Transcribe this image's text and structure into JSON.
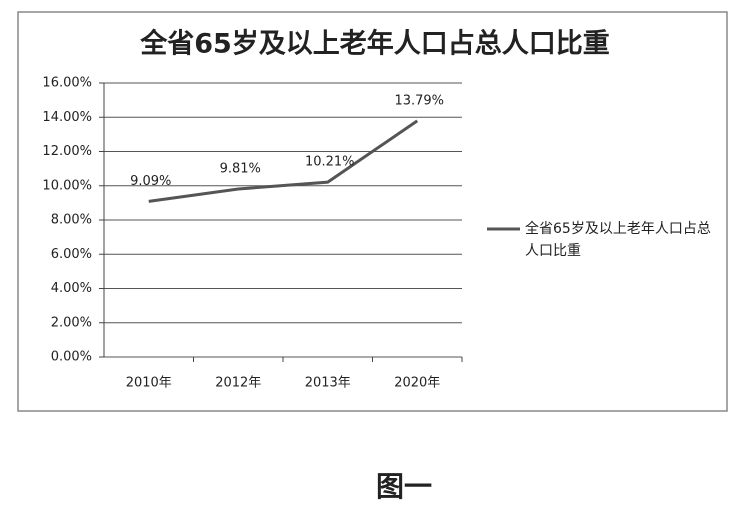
{
  "chart_data": {
    "type": "line",
    "title": "全省65岁及以上老年人口占总人口比重",
    "caption": "图一",
    "categories": [
      "2010年",
      "2012年",
      "2013年",
      "2020年"
    ],
    "series": [
      {
        "name": "全省65岁及以上老年人口占总人口比重",
        "color": "#555555",
        "values": [
          9.09,
          9.81,
          10.21,
          13.79
        ],
        "value_labels": [
          "9.09%",
          "9.81%",
          "10.21%",
          "13.79%"
        ]
      }
    ],
    "ylim": [
      0,
      16
    ],
    "yticks": [
      {
        "value": 0,
        "label": "0.00%"
      },
      {
        "value": 2,
        "label": "2.00%"
      },
      {
        "value": 4,
        "label": "4.00%"
      },
      {
        "value": 6,
        "label": "6.00%"
      },
      {
        "value": 8,
        "label": "8.00%"
      },
      {
        "value": 10,
        "label": "10.00%"
      },
      {
        "value": 12,
        "label": "12.00%"
      },
      {
        "value": 14,
        "label": "14.00%"
      },
      {
        "value": 16,
        "label": "16.00%"
      }
    ],
    "grid": true,
    "legend": "right"
  }
}
